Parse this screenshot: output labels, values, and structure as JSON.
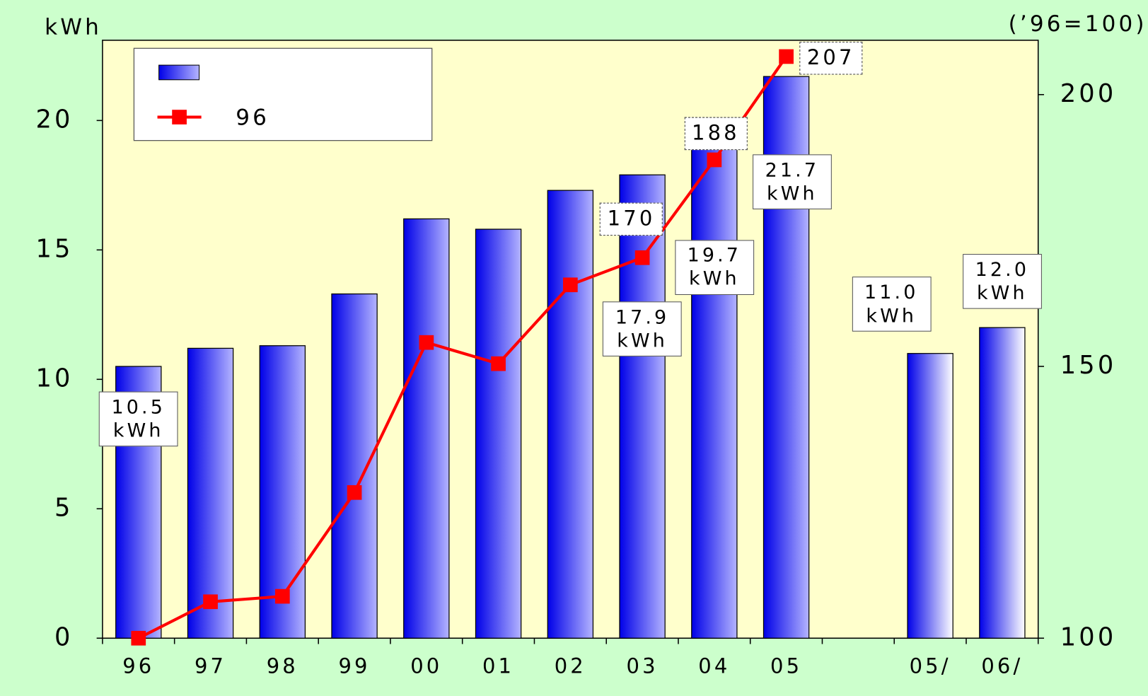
{
  "chart_data": {
    "type": "bar",
    "y_label": "kWh",
    "y2_label": "(’96=100)",
    "categories": [
      "96",
      "97",
      "98",
      "99",
      "00",
      "01",
      "02",
      "03",
      "04",
      "05",
      null,
      "05/",
      "06/"
    ],
    "series": [
      {
        "type": "bar",
        "color": "#0000ff",
        "values": [
          10.5,
          11.2,
          11.3,
          13.3,
          16.2,
          15.8,
          17.3,
          17.9,
          19.7,
          21.7,
          null,
          11.0,
          12.0
        ],
        "value_labels": [
          "10.5\nkWh",
          null,
          null,
          null,
          null,
          null,
          null,
          "17.9\nkWh",
          "19.7\nkWh",
          "21.7\nkWh",
          null,
          "11.0\nkWh",
          "12.0\nkWh"
        ]
      },
      {
        "name": "96",
        "type": "line",
        "axis": "y2",
        "color": "#ff0000",
        "values": [
          100,
          106.7,
          107.7,
          126.8,
          154.4,
          150.5,
          165,
          170,
          188,
          207,
          null,
          null,
          null
        ],
        "value_labels": [
          null,
          null,
          null,
          null,
          null,
          null,
          null,
          "170",
          "188",
          "207",
          null,
          null,
          null
        ]
      }
    ],
    "ylim": [
      0,
      23.1
    ],
    "yticks": [
      0,
      5,
      10,
      15,
      20
    ],
    "y2lim": [
      100,
      210
    ],
    "y2ticks": [
      100,
      150,
      200
    ],
    "legend": "upper left"
  }
}
